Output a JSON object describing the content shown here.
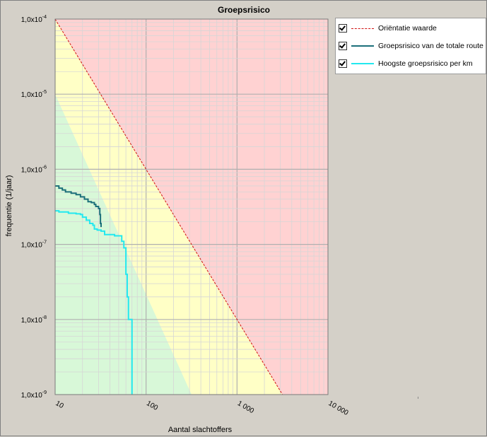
{
  "chart_data": {
    "type": "line",
    "title": "Groepsrisico",
    "xlabel": "Aantal slachtoffers",
    "ylabel": "frequentie (1/jaar)",
    "x_scale": "log",
    "y_scale": "log",
    "xlim": [
      10,
      10000
    ],
    "ylim": [
      1e-09,
      0.0001
    ],
    "grid": true,
    "legend_position": "right",
    "x_ticks": [
      {
        "value": 10,
        "label": "10"
      },
      {
        "value": 100,
        "label": "100"
      },
      {
        "value": 1000,
        "label": "1 000"
      },
      {
        "value": 10000,
        "label": "10 000"
      }
    ],
    "y_ticks": [
      {
        "value": 0.0001,
        "label": "1,0x10",
        "exp": "-4"
      },
      {
        "value": 1e-05,
        "label": "1,0x10",
        "exp": "-5"
      },
      {
        "value": 1e-06,
        "label": "1,0x10",
        "exp": "-6"
      },
      {
        "value": 1e-07,
        "label": "1,0x10",
        "exp": "-7"
      },
      {
        "value": 1e-08,
        "label": "1,0x10",
        "exp": "-8"
      },
      {
        "value": 1e-09,
        "label": "1,0x10",
        "exp": "-9"
      }
    ],
    "zones": [
      {
        "color": "#ffd2d2"
      },
      {
        "color": "#ffffc6"
      },
      {
        "color": "#d8f8d8"
      }
    ],
    "series": [
      {
        "name": "Oriëntatie waarde",
        "color": "#d01010",
        "style": "dashed",
        "x": [
          10,
          3162
        ],
        "y": [
          0.0001,
          1e-09
        ]
      },
      {
        "name": "Groepsrisico van de totale route",
        "color": "#1c6f7a",
        "style": "solid",
        "x": [
          10,
          11,
          12,
          13,
          15,
          17,
          19,
          21,
          23,
          25,
          27,
          28,
          30,
          31,
          31.5,
          32
        ],
        "y": [
          6e-07,
          5.6e-07,
          5.3e-07,
          5e-07,
          4.8e-07,
          4.6e-07,
          4.3e-07,
          4e-07,
          3.7e-07,
          3.6e-07,
          3.4e-07,
          3.2e-07,
          3e-07,
          2.5e-07,
          1.9e-07,
          1.7e-07
        ]
      },
      {
        "name": "Hoogste groepsrisico per km",
        "color": "#22e8ef",
        "style": "solid",
        "x": [
          10,
          11,
          14,
          17,
          19,
          20,
          22,
          24,
          26,
          27,
          29,
          32,
          35,
          45,
          54,
          57,
          60,
          62,
          64,
          68,
          70
        ],
        "y": [
          2.8e-07,
          2.7e-07,
          2.6e-07,
          2.55e-07,
          2.5e-07,
          2.3e-07,
          2.1e-07,
          1.9e-07,
          1.8e-07,
          1.6e-07,
          1.55e-07,
          1.5e-07,
          1.35e-07,
          1.3e-07,
          1.1e-07,
          9e-08,
          4e-08,
          2e-08,
          1e-08,
          1e-08,
          1e-09
        ]
      }
    ]
  },
  "legend": {
    "items": [
      {
        "label": "Oriëntatie waarde",
        "checked": true
      },
      {
        "label": "Groepsrisico van de totale route",
        "checked": true
      },
      {
        "label": "Hoogste groepsrisico per km",
        "checked": true
      }
    ]
  }
}
